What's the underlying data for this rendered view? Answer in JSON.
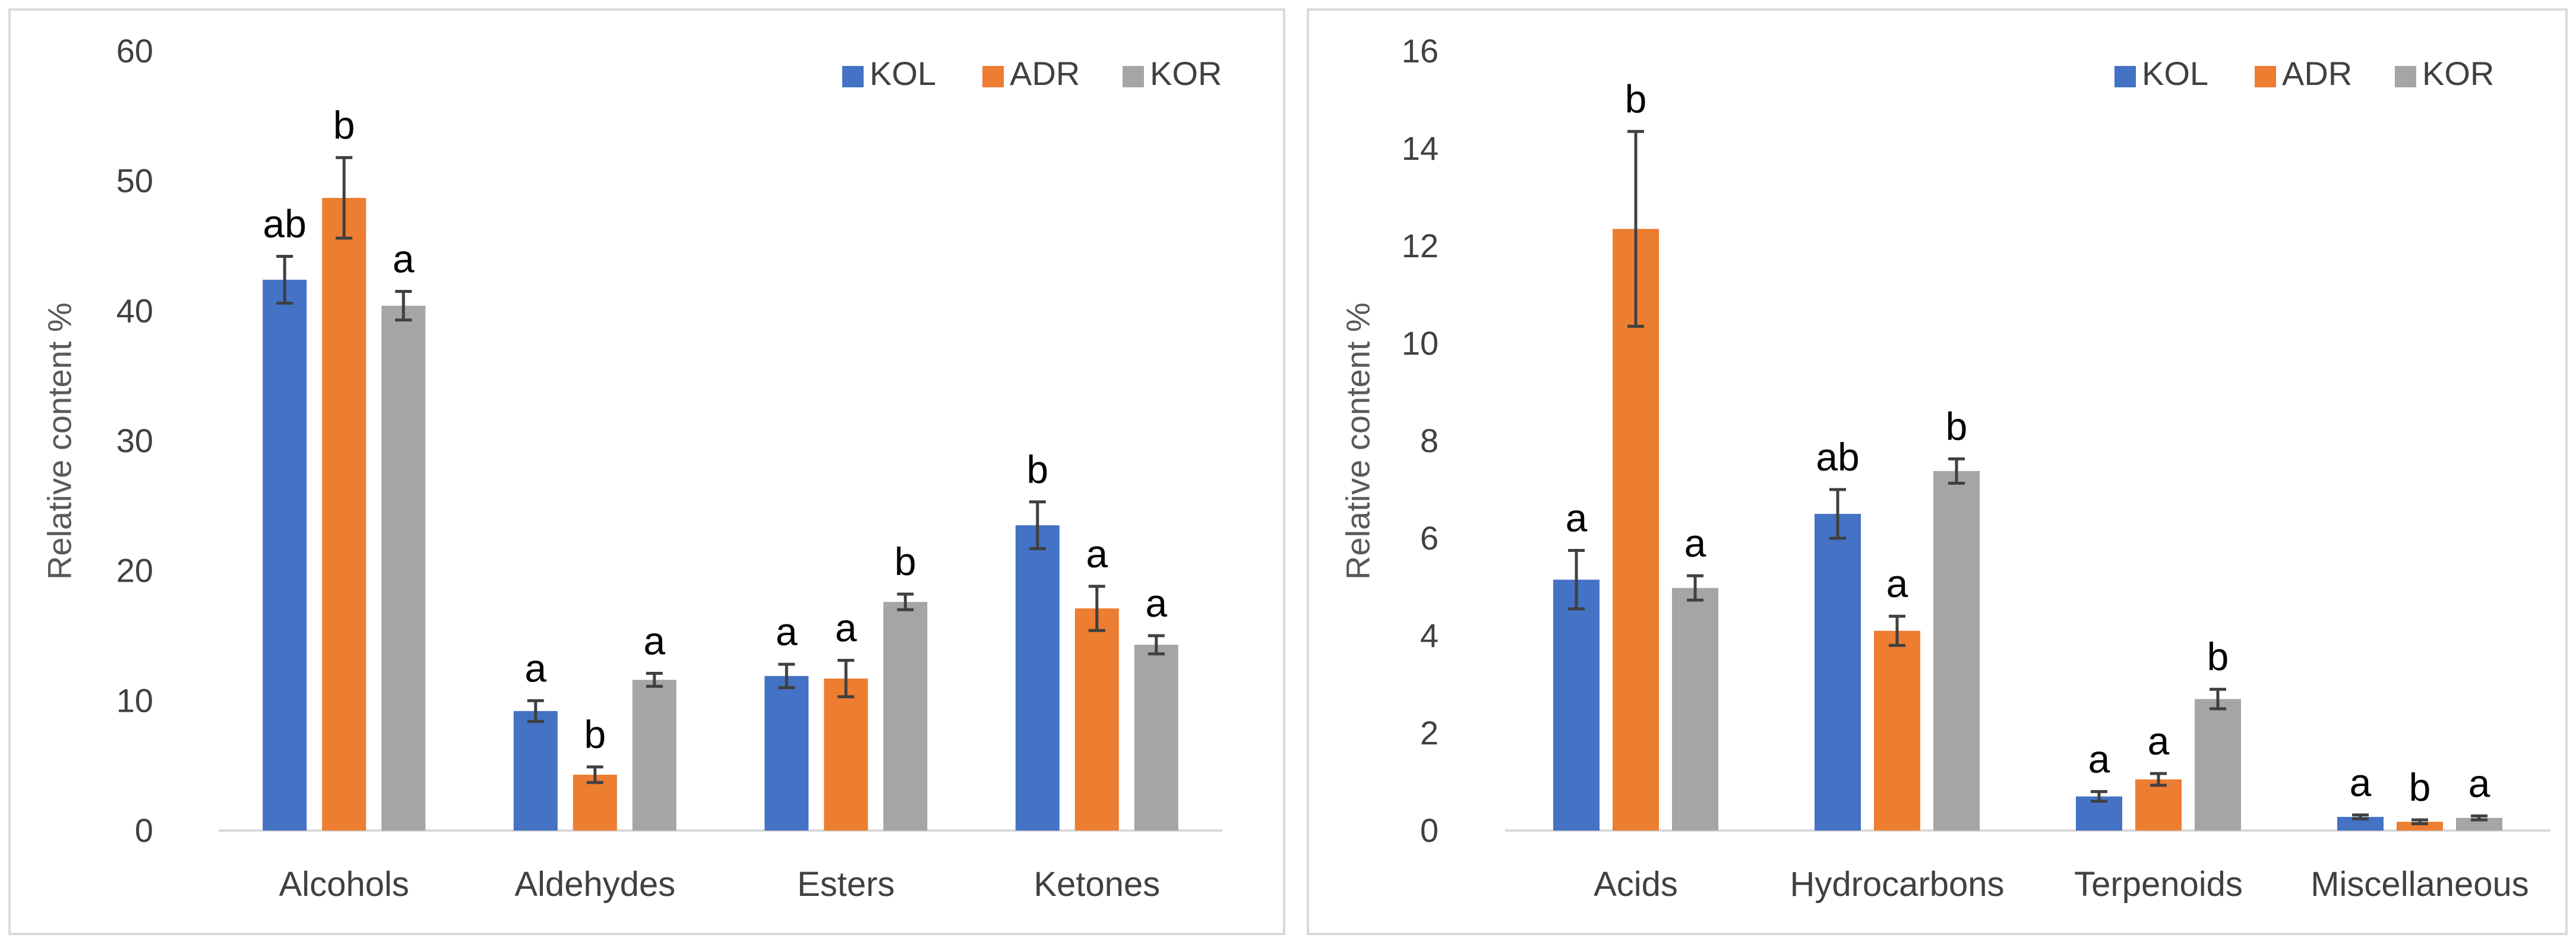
{
  "colors": {
    "KOL": "#4472c4",
    "ADR": "#ed7d31",
    "KOR": "#a5a5a5",
    "axis": "#d9d9d9",
    "text": "#404040",
    "errorbar": "#404040"
  },
  "chart_data": [
    {
      "type": "bar",
      "ylabel": "Relative content %",
      "ylim": [
        0,
        60
      ],
      "yticks": [
        "0",
        "10",
        "20",
        "30",
        "40",
        "50",
        "60"
      ],
      "grid": false,
      "legend_position": "top-right",
      "categories": [
        "Alcohols",
        "Aldehydes",
        "Esters",
        "Ketones"
      ],
      "series": [
        {
          "name": "KOL",
          "values": [
            42.4,
            9.2,
            11.9,
            23.5
          ],
          "errors": [
            1.8,
            0.8,
            0.9,
            1.8
          ],
          "labels": [
            "ab",
            "a",
            "a",
            "b"
          ]
        },
        {
          "name": "ADR",
          "values": [
            48.7,
            4.3,
            11.7,
            17.1
          ],
          "errors": [
            3.1,
            0.6,
            1.4,
            1.7
          ],
          "labels": [
            "b",
            "b",
            "a",
            "a"
          ]
        },
        {
          "name": "KOR",
          "values": [
            40.4,
            11.6,
            17.6,
            14.3
          ],
          "errors": [
            1.1,
            0.5,
            0.6,
            0.7
          ],
          "labels": [
            "a",
            "a",
            "b",
            "a"
          ]
        }
      ]
    },
    {
      "type": "bar",
      "ylabel": "Relative content %",
      "ylim": [
        0,
        16
      ],
      "yticks": [
        "0",
        "2",
        "4",
        "6",
        "8",
        "10",
        "12",
        "14",
        "16"
      ],
      "grid": false,
      "legend_position": "top-right",
      "categories": [
        "Acids",
        "Hydrocarbons",
        "Terpenoids",
        "Miscellaneous"
      ],
      "series": [
        {
          "name": "KOL",
          "values": [
            5.15,
            6.5,
            0.7,
            0.28
          ],
          "errors": [
            0.6,
            0.5,
            0.1,
            0.04
          ],
          "labels": [
            "a",
            "ab",
            "a",
            "a"
          ]
        },
        {
          "name": "ADR",
          "values": [
            12.35,
            4.1,
            1.05,
            0.18
          ],
          "errors": [
            2.0,
            0.3,
            0.12,
            0.04
          ],
          "labels": [
            "b",
            "a",
            "a",
            "b"
          ]
        },
        {
          "name": "KOR",
          "values": [
            4.98,
            7.38,
            2.7,
            0.26
          ],
          "errors": [
            0.25,
            0.25,
            0.2,
            0.04
          ],
          "labels": [
            "a",
            "b",
            "b",
            "a"
          ]
        }
      ]
    }
  ]
}
